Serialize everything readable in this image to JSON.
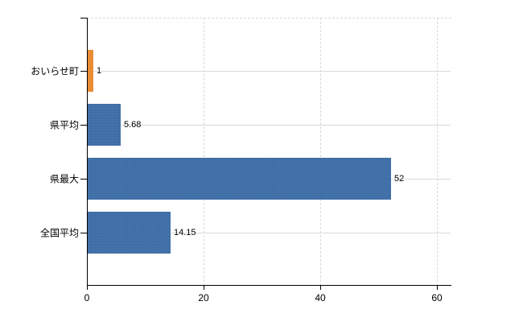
{
  "chart_data": {
    "type": "bar",
    "orientation": "horizontal",
    "title": "",
    "xlabel": "",
    "ylabel": "",
    "categories": [
      "おいらせ町",
      "県平均",
      "県最大",
      "全国平均"
    ],
    "values": [
      1,
      5.68,
      52,
      14.15
    ],
    "value_labels": [
      "1",
      "5.68",
      "52",
      "14.15"
    ],
    "x_ticks": [
      0,
      20,
      40,
      60
    ],
    "x_tick_labels": [
      "0",
      "20",
      "40",
      "60"
    ],
    "xlim": [
      0,
      62.3
    ],
    "grid": true,
    "legend": false,
    "gridline_style": {
      "horizontal": "solid at each category center",
      "vertical": "dashed at ticks 20, 40, 60",
      "top_border": "dashed"
    },
    "colors": {
      "bars": [
        "#EE8C2E",
        "#3C6EA9",
        "#3C6EA9",
        "#3C6EA9"
      ],
      "bar_orange": "#EE8C2E",
      "bar_blue": "#3C6EA9",
      "gridline": "#D9D9D9",
      "axis": "#000000",
      "text": "#000000",
      "background": "#FFFFFF"
    }
  }
}
